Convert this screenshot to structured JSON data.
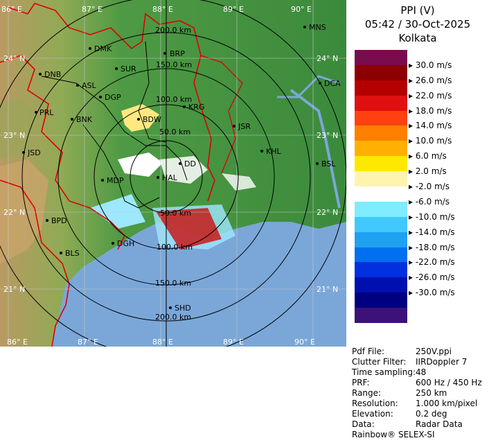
{
  "header": {
    "product": "PPI (V)",
    "time_date": "05:42 / 30-Oct-2025",
    "station": "Kolkata"
  },
  "legend": {
    "unit": "m/s",
    "labels": [
      "30.0 m/s",
      "26.0 m/s",
      "22.0 m/s",
      "18.0 m/s",
      "14.0 m/s",
      "10.0 m/s",
      "6.0 m/s",
      "2.0 m/s",
      "-2.0 m/s",
      "-6.0 m/s",
      "-10.0 m/s",
      "-14.0 m/s",
      "-18.0 m/s",
      "-22.0 m/s",
      "-26.0 m/s",
      "-30.0 m/s"
    ],
    "colors": [
      "#7a0c4e",
      "#8c0000",
      "#b40000",
      "#e01010",
      "#ff4010",
      "#ff7f00",
      "#ffb000",
      "#ffe800",
      "#fff3b0",
      "#ffffff",
      "#80ecff",
      "#40c8ff",
      "#20a0f0",
      "#0070f0",
      "#0030e0",
      "#0010b0",
      "#000080",
      "#3c1278"
    ]
  },
  "grid": {
    "longitudes": [
      "86° E",
      "87° E",
      "88° E",
      "89° E",
      "90° E"
    ],
    "latitudes": [
      "24° N",
      "23° N",
      "22° N",
      "21° N"
    ],
    "range_rings": [
      "50.0 km",
      "100.0 km",
      "150.0 km",
      "200.0 km"
    ]
  },
  "map": {
    "places": [
      "MNS",
      "DMK",
      "BRP",
      "DNB",
      "SUR",
      "ASL",
      "DCA",
      "DGP",
      "KRG",
      "PRL",
      "BNK",
      "BDW",
      "JSR",
      "KHL",
      "JSD",
      "DD",
      "BSL",
      "MDP",
      "HAL",
      "BPD",
      "DGH",
      "BLS",
      "SHD"
    ],
    "colors": {
      "land_low": "#3f8f3c",
      "land_high": "#c9a46a",
      "sea": "#7aa7d8",
      "rings": "#000000",
      "borders": "#e00000"
    }
  },
  "info": {
    "rows": [
      {
        "key": "Pdf File:",
        "value": "250V.ppi"
      },
      {
        "key": "Clutter Filter:",
        "value": "IIRDoppler 7"
      },
      {
        "key": "Time sampling:",
        "value": "48"
      },
      {
        "key": "PRF:",
        "value": "600 Hz / 450 Hz"
      },
      {
        "key": "Range:",
        "value": "250 km"
      },
      {
        "key": "Resolution:",
        "value": "1.000 km/pixel"
      },
      {
        "key": "Elevation:",
        "value": "0.2 deg"
      },
      {
        "key": "Data:",
        "value": "Radar Data"
      }
    ],
    "brand": "Rainbow® SELEX-SI"
  }
}
